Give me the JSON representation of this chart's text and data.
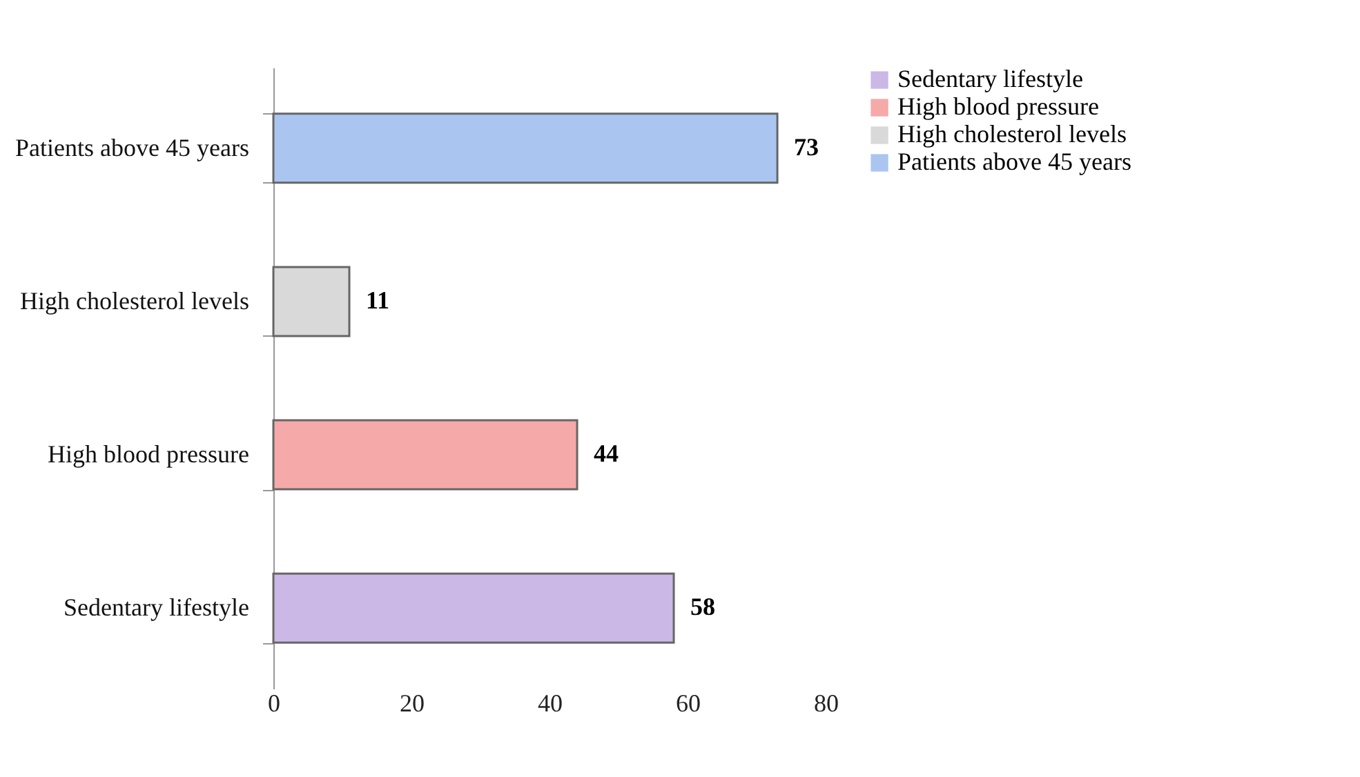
{
  "chart_data": {
    "type": "bar",
    "orientation": "horizontal",
    "categories": [
      "Patients above 45 years",
      "High cholesterol levels",
      "High blood pressure",
      "Sedentary lifestyle"
    ],
    "series": [
      {
        "name": "Sedentary lifestyle",
        "color": "#cbb8e6",
        "values": [
          null,
          null,
          null,
          58
        ]
      },
      {
        "name": "High blood pressure",
        "color": "#f5a9a9",
        "values": [
          null,
          null,
          44,
          null
        ]
      },
      {
        "name": "High cholesterol levels",
        "color": "#d9d9d9",
        "values": [
          null,
          11,
          null,
          null
        ]
      },
      {
        "name": "Patients above 45 years",
        "color": "#aac6f0",
        "values": [
          73,
          null,
          null,
          null
        ]
      }
    ],
    "xlim": [
      0,
      80
    ],
    "xticks": [
      0,
      20,
      40,
      60,
      80
    ],
    "data_labels": true,
    "legend": "right",
    "grid": false
  }
}
